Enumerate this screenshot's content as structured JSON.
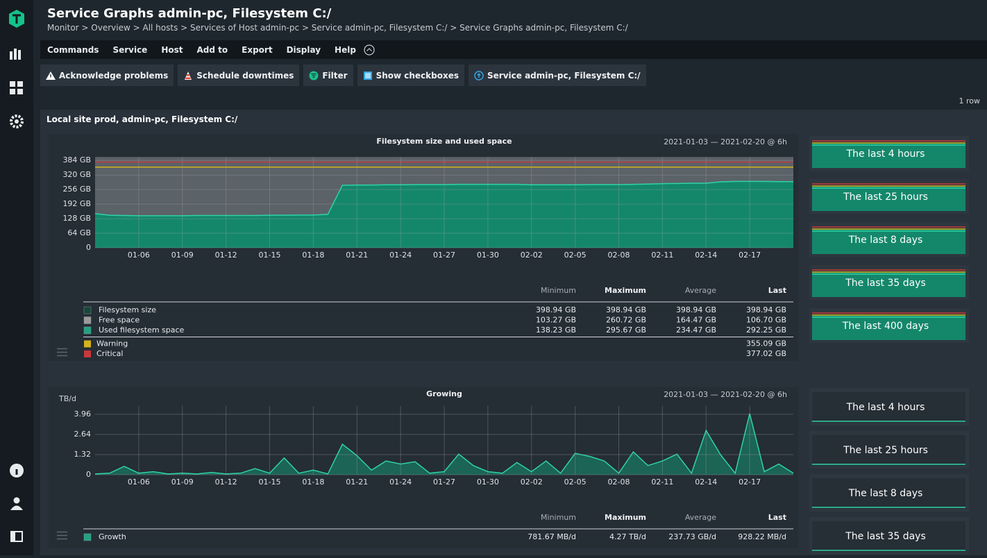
{
  "header": {
    "title": "Service Graphs admin-pc, Filesystem C:/",
    "breadcrumb": "Monitor > Overview > All hosts > Services of Host admin-pc > Service admin-pc, Filesystem C:/ > Service Graphs admin-pc, Filesystem C:/"
  },
  "menu": [
    "Commands",
    "Service",
    "Host",
    "Add to",
    "Export",
    "Display",
    "Help"
  ],
  "toolbar": [
    "Acknowledge problems",
    "Schedule downtimes",
    "Filter",
    "Show checkboxes",
    "Service admin-pc, Filesystem C:/"
  ],
  "row_count": "1 row",
  "panel_title": "Local site prod, admin-pc, Filesystem C:/",
  "graphs": [
    {
      "type": "area",
      "title": "Filesystem size and used space",
      "time_range": "2021-01-03 — 2021-02-20 @ 6h",
      "x": [
        "01-03",
        "01-04",
        "01-05",
        "01-06",
        "01-07",
        "01-08",
        "01-09",
        "01-10",
        "01-11",
        "01-12",
        "01-13",
        "01-14",
        "01-15",
        "01-16",
        "01-17",
        "01-18",
        "01-19",
        "01-20",
        "01-21",
        "01-22",
        "01-23",
        "01-24",
        "01-25",
        "01-26",
        "01-27",
        "01-28",
        "01-29",
        "01-30",
        "01-31",
        "02-01",
        "02-02",
        "02-03",
        "02-04",
        "02-05",
        "02-06",
        "02-07",
        "02-08",
        "02-09",
        "02-10",
        "02-11",
        "02-12",
        "02-13",
        "02-14",
        "02-15",
        "02-16",
        "02-17",
        "02-18",
        "02-19",
        "02-20"
      ],
      "xticks": [
        "01-06",
        "01-09",
        "01-12",
        "01-15",
        "01-18",
        "01-21",
        "01-24",
        "01-27",
        "01-30",
        "02-02",
        "02-05",
        "02-08",
        "02-11",
        "02-14",
        "02-17"
      ],
      "ylim": [
        0,
        400
      ],
      "yticks": [
        0,
        {
          "value": 64,
          "label": "64 GB"
        },
        {
          "value": 128,
          "label": "128 GB"
        },
        {
          "value": 192,
          "label": "192 GB"
        },
        {
          "value": 256,
          "label": "256 GB"
        },
        {
          "value": 320,
          "label": "320 GB"
        },
        {
          "value": 384,
          "label": "384 GB"
        }
      ],
      "background_fill": {
        "value": 398.94,
        "color": "#5b6268"
      },
      "series": [
        {
          "color": "#2ed3a8",
          "fill": "#14876b",
          "values": [
            150,
            143,
            142,
            141,
            141,
            141,
            141,
            142,
            142,
            142,
            142,
            142,
            143,
            143,
            144,
            144,
            147,
            275,
            276,
            276,
            277,
            277,
            278,
            278,
            278,
            279,
            279,
            279,
            279,
            279,
            277,
            277,
            277,
            277,
            278,
            278,
            278,
            279,
            280,
            282,
            283,
            284,
            284,
            290,
            292,
            292,
            292,
            291,
            291
          ]
        }
      ],
      "legend": {
        "columns": [
          "Minimum",
          "Maximum",
          "Average",
          "Last"
        ],
        "rows": [
          {
            "name": "Filesystem size",
            "color": "#17473b",
            "cells": [
              "398.94 GB",
              "398.94 GB",
              "398.94 GB",
              "398.94 GB"
            ]
          },
          {
            "name": "Free space",
            "color": "#9a9a9a",
            "cells": [
              "103.27 GB",
              "260.72 GB",
              "164.47 GB",
              "106.70 GB"
            ]
          },
          {
            "name": "Used filesystem space",
            "color": "#1fa383",
            "cells": [
              "138.23 GB",
              "295.67 GB",
              "234.47 GB",
              "292.25 GB"
            ]
          }
        ],
        "thresholds": [
          {
            "name": "Warning",
            "color": "#d4b21c",
            "value": 355.09,
            "label": "355.09 GB"
          },
          {
            "name": "Critical",
            "color": "#c8383c",
            "value": 377.02,
            "label": "377.02 GB"
          }
        ]
      },
      "thumbnails": [
        "The last 4 hours",
        "The last 25 hours",
        "The last 8 days",
        "The last 35 days",
        "The last 400 days"
      ]
    },
    {
      "type": "area",
      "title": "Growing",
      "y_unit": "TB/d",
      "time_range": "2021-01-03 — 2021-02-20 @ 6h",
      "x": [
        "01-03",
        "01-04",
        "01-05",
        "01-06",
        "01-07",
        "01-08",
        "01-09",
        "01-10",
        "01-11",
        "01-12",
        "01-13",
        "01-14",
        "01-15",
        "01-16",
        "01-17",
        "01-18",
        "01-19",
        "01-20",
        "01-21",
        "01-22",
        "01-23",
        "01-24",
        "01-25",
        "01-26",
        "01-27",
        "01-28",
        "01-29",
        "01-30",
        "01-31",
        "02-01",
        "02-02",
        "02-03",
        "02-04",
        "02-05",
        "02-06",
        "02-07",
        "02-08",
        "02-09",
        "02-10",
        "02-11",
        "02-12",
        "02-13",
        "02-14",
        "02-15",
        "02-16",
        "02-17",
        "02-18",
        "02-19",
        "02-20"
      ],
      "xticks": [
        "01-06",
        "01-09",
        "01-12",
        "01-15",
        "01-18",
        "01-21",
        "01-24",
        "01-27",
        "01-30",
        "02-02",
        "02-05",
        "02-08",
        "02-11",
        "02-14",
        "02-17"
      ],
      "ylim": [
        0,
        4.5
      ],
      "yticks": [
        0,
        1.32,
        2.64,
        3.96
      ],
      "series": [
        {
          "color": "#2ed3a8",
          "fill": "#1b6e5a",
          "values": [
            0.05,
            0.1,
            0.55,
            0.1,
            0.2,
            0.05,
            0.1,
            0.05,
            0.15,
            0.05,
            0.1,
            0.4,
            0.1,
            1.1,
            0.1,
            0.3,
            0.05,
            2.0,
            1.25,
            0.3,
            0.9,
            0.7,
            0.85,
            0.1,
            0.2,
            1.35,
            0.6,
            0.2,
            0.1,
            0.8,
            0.2,
            0.9,
            0.1,
            1.4,
            1.2,
            0.9,
            0.1,
            1.5,
            0.6,
            0.9,
            1.35,
            0.1,
            2.9,
            1.3,
            0.1,
            4.0,
            0.2,
            0.7,
            0.1
          ]
        }
      ],
      "legend": {
        "columns": [
          "Minimum",
          "Maximum",
          "Average",
          "Last"
        ],
        "rows": [
          {
            "name": "Growth",
            "color": "#1fa383",
            "cells": [
              "781.67 MB/d",
              "4.27 TB/d",
              "237.73 GB/d",
              "928.22 MB/d"
            ]
          }
        ]
      },
      "thumbnails": [
        "The last 4 hours",
        "The last 25 hours",
        "The last 8 days",
        "The last 35 days"
      ]
    }
  ]
}
